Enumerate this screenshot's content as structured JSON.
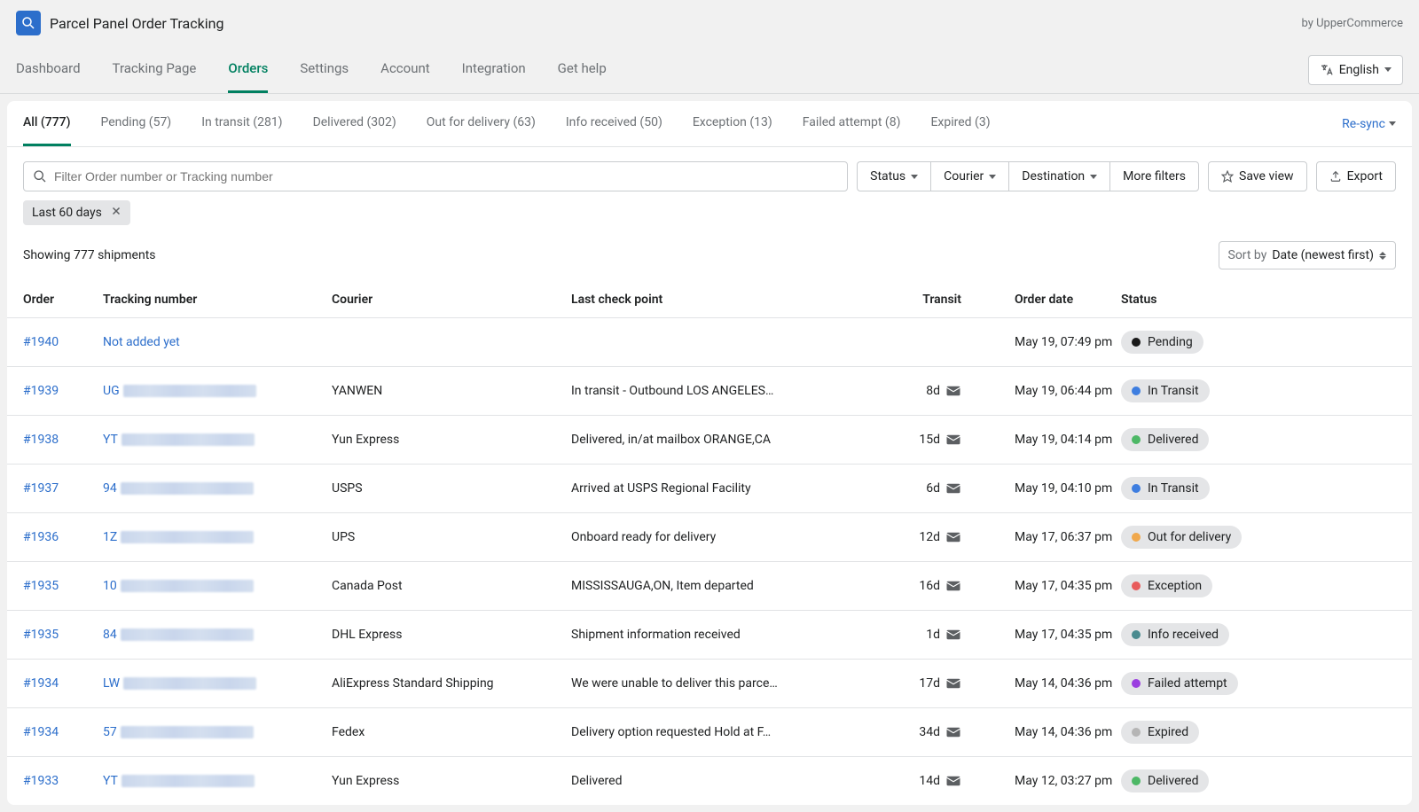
{
  "app": {
    "title": "Parcel Panel Order Tracking",
    "by": "by UpperCommerce"
  },
  "nav": {
    "tabs": [
      {
        "label": "Dashboard",
        "active": false
      },
      {
        "label": "Tracking Page",
        "active": false
      },
      {
        "label": "Orders",
        "active": true
      },
      {
        "label": "Settings",
        "active": false
      },
      {
        "label": "Account",
        "active": false
      },
      {
        "label": "Integration",
        "active": false
      },
      {
        "label": "Get help",
        "active": false
      }
    ],
    "language": "English"
  },
  "statusTabs": {
    "items": [
      {
        "label": "All (777)",
        "active": true
      },
      {
        "label": "Pending (57)",
        "active": false
      },
      {
        "label": "In transit (281)",
        "active": false
      },
      {
        "label": "Delivered (302)",
        "active": false
      },
      {
        "label": "Out for delivery (63)",
        "active": false
      },
      {
        "label": "Info received (50)",
        "active": false
      },
      {
        "label": "Exception (13)",
        "active": false
      },
      {
        "label": "Failed attempt (8)",
        "active": false
      },
      {
        "label": "Expired (3)",
        "active": false
      }
    ],
    "resync": "Re-sync"
  },
  "filters": {
    "searchPlaceholder": "Filter Order number or Tracking number",
    "status": "Status",
    "courier": "Courier",
    "destination": "Destination",
    "more": "More filters",
    "save": "Save view",
    "export": "Export",
    "chip": "Last 60 days"
  },
  "meta": {
    "showing": "Showing 777 shipments",
    "sortPrefix": "Sort by",
    "sortValue": "Date (newest first)"
  },
  "columns": {
    "order": "Order",
    "tracking": "Tracking number",
    "courier": "Courier",
    "check": "Last check point",
    "transit": "Transit",
    "date": "Order date",
    "status": "Status"
  },
  "statusColors": {
    "Pending": "#1a1a1a",
    "In Transit": "#3e7ee0",
    "Delivered": "#4db866",
    "Out for delivery": "#f0a84c",
    "Exception": "#e85b5b",
    "Info received": "#4a8b8f",
    "Failed attempt": "#9b3fe0",
    "Expired": "#b5b5b5"
  },
  "rows": [
    {
      "order": "#1940",
      "trackingText": "Not added yet",
      "trackingSimple": true,
      "courier": "",
      "check": "",
      "transit": "",
      "hasMail": false,
      "date": "May 19, 07:49 pm",
      "status": "Pending"
    },
    {
      "order": "#1939",
      "trackingPrefix": "UG",
      "courier": "YANWEN",
      "check": "In transit - Outbound LOS ANGELES…",
      "transit": "8d",
      "hasMail": true,
      "date": "May 19, 06:44 pm",
      "status": "In Transit"
    },
    {
      "order": "#1938",
      "trackingPrefix": "YT",
      "courier": "Yun Express",
      "check": "Delivered, in/at mailbox ORANGE,CA",
      "transit": "15d",
      "hasMail": true,
      "date": "May 19, 04:14 pm",
      "status": "Delivered"
    },
    {
      "order": "#1937",
      "trackingPrefix": "94",
      "courier": "USPS",
      "check": "Arrived at USPS Regional Facility",
      "transit": "6d",
      "hasMail": true,
      "date": "May 19, 04:10 pm",
      "status": "In Transit"
    },
    {
      "order": "#1936",
      "trackingPrefix": "1Z",
      "courier": "UPS",
      "check": "Onboard ready for delivery",
      "transit": "12d",
      "hasMail": true,
      "date": "May 17, 06:37 pm",
      "status": "Out for delivery"
    },
    {
      "order": "#1935",
      "trackingPrefix": "10",
      "courier": "Canada Post",
      "check": "MISSISSAUGA,ON, Item departed",
      "transit": "16d",
      "hasMail": true,
      "date": "May 17, 04:35 pm",
      "status": "Exception"
    },
    {
      "order": "#1935",
      "trackingPrefix": "84",
      "courier": "DHL Express",
      "check": "Shipment information received",
      "transit": "1d",
      "hasMail": true,
      "date": "May 17, 04:35 pm",
      "status": "Info received"
    },
    {
      "order": "#1934",
      "trackingPrefix": "LW",
      "courier": "AliExpress Standard Shipping",
      "check": "We were unable to deliver this parce…",
      "transit": "17d",
      "hasMail": true,
      "date": "May 14, 04:36 pm",
      "status": "Failed attempt"
    },
    {
      "order": "#1934",
      "trackingPrefix": "57",
      "courier": "Fedex",
      "check": "Delivery option requested Hold at F…",
      "transit": "34d",
      "hasMail": true,
      "date": "May 14, 04:36 pm",
      "status": "Expired"
    },
    {
      "order": "#1933",
      "trackingPrefix": "YT",
      "courier": "Yun Express",
      "check": "Delivered",
      "transit": "14d",
      "hasMail": true,
      "date": "May 12, 03:27 pm",
      "status": "Delivered"
    }
  ]
}
